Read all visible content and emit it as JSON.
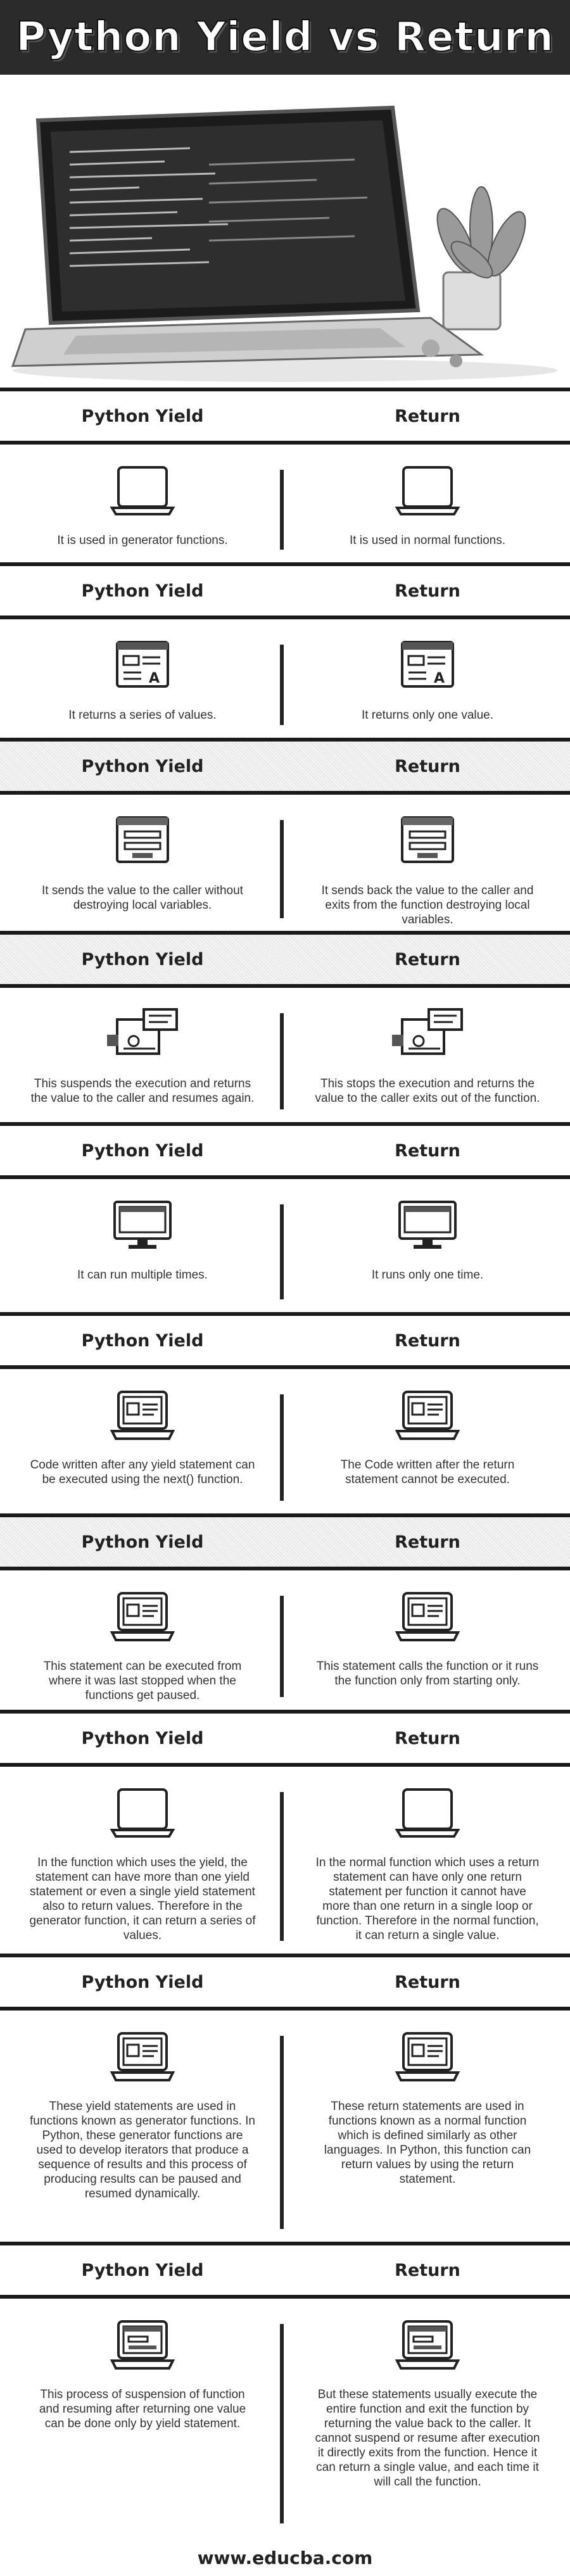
{
  "title": "Python Yield vs Return",
  "footer": "www.educba.com",
  "rows": [
    {
      "left_head": "Python Yield",
      "right_head": "Return",
      "left": "It is used in generator functions.",
      "right": "It is used in normal functions.",
      "icon": "laptop-icon",
      "alt": false
    },
    {
      "left_head": "Python Yield",
      "right_head": "Return",
      "left": "It returns a series of values.",
      "right": "It returns only one value.",
      "icon": "document-icon",
      "alt": false
    },
    {
      "left_head": "Python Yield",
      "right_head": "Return",
      "left": "It sends the value to the caller without destroying local variables.",
      "right": "It sends back the value to the caller and exits from the function destroying local variables.",
      "icon": "form-icon",
      "alt": true
    },
    {
      "left_head": "Python Yield",
      "right_head": "Return",
      "left": "This suspends the execution and returns the value to the caller and resumes again.",
      "right": "This stops the execution and returns the value to the caller exits out of the function.",
      "icon": "workflow-icon",
      "alt": true
    },
    {
      "left_head": "Python Yield",
      "right_head": "Return",
      "left": "It can run multiple times.",
      "right": "It runs only one time.",
      "icon": "monitor-icon",
      "alt": false
    },
    {
      "left_head": "Python Yield",
      "right_head": "Return",
      "left": "Code written after any yield statement can be executed using the next() function.",
      "right": "The Code written after the return statement cannot be executed.",
      "icon": "laptop-screen-icon",
      "alt": false
    },
    {
      "left_head": "Python Yield",
      "right_head": "Return",
      "left": "This statement can be executed from where it was last stopped when the functions get paused.",
      "right": "This statement calls the function or it runs the function only from starting only.",
      "icon": "laptop-screen-icon",
      "alt": true
    },
    {
      "left_head": "Python Yield",
      "right_head": "Return",
      "left": "In the function which uses the yield, the statement can have more than one yield statement or even a single yield statement also to return values. Therefore in the generator function, it can return a series of values.",
      "right": "In the normal function which uses a return statement can have only one return statement per function it cannot have more than one return in a single loop or function. Therefore in the normal function, it can return a single value.",
      "icon": "laptop-icon",
      "alt": false
    },
    {
      "left_head": "Python Yield",
      "right_head": "Return",
      "left": "These yield statements are used in functions known as generator functions. In Python, these generator functions are used to develop iterators that produce a sequence of results and this process of producing results can be paused and resumed dynamically.",
      "right": "These return statements are used in functions known as a normal function which is defined similarly as other languages. In Python, this function can return values by using the return statement.",
      "icon": "laptop-screen-icon",
      "alt": false
    },
    {
      "left_head": "Python Yield",
      "right_head": "Return",
      "left": "This process of suspension of function and resuming after returning one value can be done only by yield statement.",
      "right": "But these statements usually execute the entire function and exit the function by returning the value back to the caller. It cannot suspend or resume after execution it directly exits from the function. Hence it can return a single value, and each time it will call the function.",
      "icon": "laptop-window-icon",
      "alt": false
    }
  ]
}
